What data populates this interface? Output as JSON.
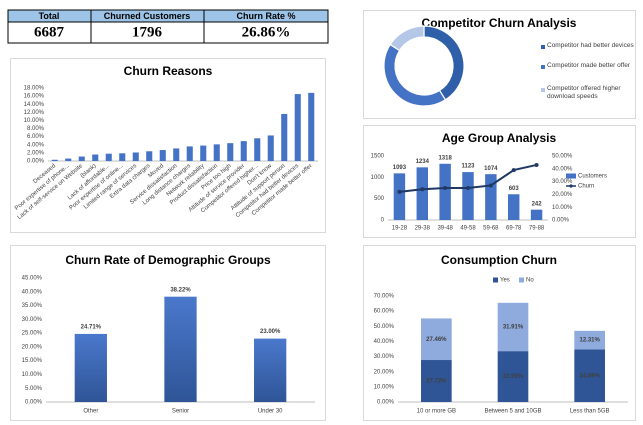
{
  "kpi": {
    "headers": [
      "Total",
      "Churned Customers",
      "Churn Rate %"
    ],
    "values": [
      "6687",
      "1796",
      "26.86%"
    ]
  },
  "chart_data": [
    {
      "type": "pie",
      "donut": true,
      "title": "Competitor Churn Analysis",
      "categories": [
        "Competitor had better devices",
        "Competitor made better offer",
        "Competitor offered higher download speeds"
      ],
      "values": [
        41,
        43,
        16
      ],
      "colors": [
        "#2e5fa8",
        "#4472c4",
        "#b4c7e7"
      ],
      "legend": "right"
    },
    {
      "type": "bar",
      "title": "Churn Reasons",
      "categories": [
        "Deceased",
        "Poor expertise of phone...",
        "Lack of self-service on Website",
        "(blank)",
        "Lack of affordable...",
        "Poor expertise of online...",
        "Limited range of services",
        "Extra data charges",
        "Moved",
        "Service dissatisfaction",
        "Long distance charges",
        "Network reliability",
        "Product dissatisfaction",
        "Price too high",
        "Attitude of service provider",
        "Competitor offered higher...",
        "Don't know",
        "Attitude of support person",
        "Competitor had better devices",
        "Competitor made better offer"
      ],
      "values": [
        0.3,
        0.6,
        1.1,
        1.6,
        1.8,
        1.9,
        2.1,
        2.4,
        2.7,
        3.1,
        3.6,
        3.8,
        4.1,
        4.4,
        4.9,
        5.6,
        6.3,
        11.6,
        16.5,
        16.8
      ],
      "color": "#4472c4",
      "ylim": [
        0,
        18
      ],
      "yticks": [
        {
          "value": 0,
          "label": "0.00%"
        },
        {
          "value": 2,
          "label": "2.00%"
        },
        {
          "value": 4,
          "label": "4.00%"
        },
        {
          "value": 6,
          "label": "6.00%"
        },
        {
          "value": 8,
          "label": "8.00%"
        },
        {
          "value": 10,
          "label": "10.00%"
        },
        {
          "value": 12,
          "label": "12.00%"
        },
        {
          "value": 14,
          "label": "14.00%"
        },
        {
          "value": 16,
          "label": "16.00%"
        },
        {
          "value": 18,
          "label": "18.00%"
        }
      ],
      "grid": false
    },
    {
      "type": "combo",
      "title": "Age Group Analysis",
      "categories": [
        "19-28",
        "29-38",
        "39-48",
        "49-58",
        "59-68",
        "69-78",
        "79-88"
      ],
      "series": [
        {
          "name": "Customers",
          "color": "#4472c4",
          "values": [
            1093,
            1234,
            1318,
            1123,
            1074,
            603,
            242
          ]
        },
        {
          "name": "Churn",
          "color": "#1f3864",
          "values": [
            22,
            24,
            25,
            25,
            27,
            39,
            43
          ],
          "axis": "y2"
        }
      ],
      "ylim": [
        0,
        1500
      ],
      "yticks": [
        0,
        500,
        1000,
        1500
      ],
      "y2lim": [
        0,
        50
      ],
      "y2ticks": [
        {
          "value": 0,
          "label": "0.00%"
        },
        {
          "value": 10,
          "label": "10.00%"
        },
        {
          "value": 20,
          "label": "20.00%"
        },
        {
          "value": 30,
          "label": "30.00%"
        },
        {
          "value": 40,
          "label": "40.00%"
        },
        {
          "value": 50,
          "label": "50.00%"
        }
      ],
      "legend": "right"
    },
    {
      "type": "bar",
      "title": "Churn Rate of Demographic Groups",
      "categories": [
        "Other",
        "Senior",
        "Under 30"
      ],
      "values": [
        24.71,
        38.22,
        23.0
      ],
      "value_labels": [
        "24.71%",
        "38.22%",
        "23.00%"
      ],
      "color": "#4472c4",
      "ylim": [
        0,
        45
      ],
      "yticks": [
        {
          "value": 0,
          "label": "0.00%"
        },
        {
          "value": 5,
          "label": "5.00%"
        },
        {
          "value": 10,
          "label": "10.00%"
        },
        {
          "value": 15,
          "label": "15.00%"
        },
        {
          "value": 20,
          "label": "20.00%"
        },
        {
          "value": 25,
          "label": "25.00%"
        },
        {
          "value": 30,
          "label": "30.00%"
        },
        {
          "value": 35,
          "label": "35.00%"
        },
        {
          "value": 40,
          "label": "40.00%"
        },
        {
          "value": 45,
          "label": "45.00%"
        }
      ],
      "grid": false
    },
    {
      "type": "stacked_bar",
      "title": "Consumption Churn",
      "categories": [
        "10 or more GB",
        "Between 5 and 10GB",
        "Less than 5GB"
      ],
      "series": [
        {
          "name": "Yes",
          "color": "#2f5597",
          "values": [
            27.72,
            33.59,
            34.69
          ],
          "value_labels": [
            "27.72%",
            "33.59%",
            "34.69%"
          ]
        },
        {
          "name": "No",
          "color": "#8faadc",
          "values": [
            27.46,
            31.91,
            12.31
          ],
          "value_labels": [
            "27.46%",
            "31.91%",
            "12.31%"
          ]
        }
      ],
      "ylim": [
        0,
        70
      ],
      "yticks": [
        {
          "value": 0,
          "label": "0.00%"
        },
        {
          "value": 10,
          "label": "10.00%"
        },
        {
          "value": 20,
          "label": "20.00%"
        },
        {
          "value": 30,
          "label": "30.00%"
        },
        {
          "value": 40,
          "label": "40.00%"
        },
        {
          "value": 50,
          "label": "50.00%"
        },
        {
          "value": 60,
          "label": "60.00%"
        },
        {
          "value": 70,
          "label": "70.00%"
        }
      ],
      "grid": false,
      "legend": "top"
    }
  ]
}
